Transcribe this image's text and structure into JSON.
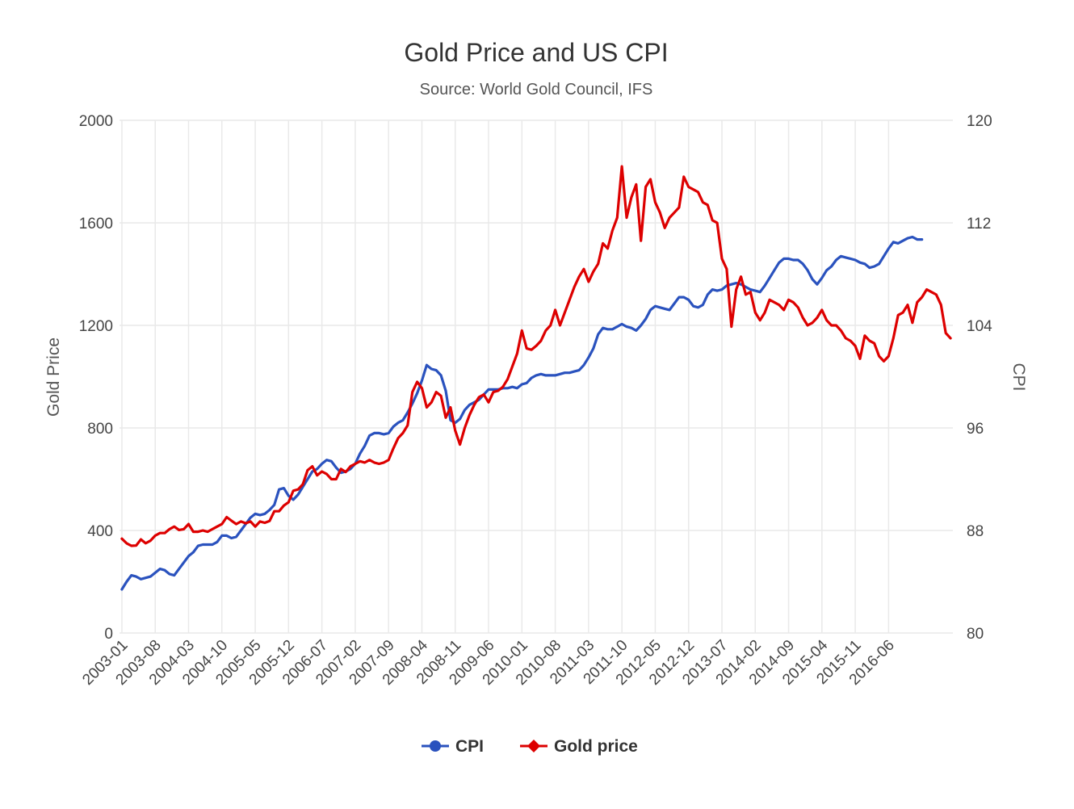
{
  "chart_data": {
    "type": "line",
    "title": "Gold Price and US CPI",
    "subtitle": "Source: World Gold Council, IFS",
    "y_left": {
      "label": "Gold Price",
      "range": [
        0,
        2000
      ],
      "ticks": [
        "0",
        "400",
        "800",
        "1200",
        "1600",
        "2000"
      ]
    },
    "y_right": {
      "label": "CPI",
      "range": [
        80,
        120
      ],
      "ticks": [
        "80",
        "88",
        "96",
        "104",
        "112",
        "120"
      ]
    },
    "x_start": "2003-01",
    "x_tick_labels": [
      "2003-01",
      "2003-08",
      "2004-03",
      "2004-10",
      "2005-05",
      "2005-12",
      "2006-07",
      "2007-02",
      "2007-09",
      "2008-04",
      "2008-11",
      "2009-06",
      "2010-01",
      "2010-08",
      "2011-03",
      "2011-10",
      "2012-05",
      "2012-12",
      "2013-07",
      "2014-02",
      "2014-09",
      "2015-04",
      "2015-11",
      "2016-06"
    ],
    "grid": true,
    "legend": "bottom-center",
    "series": [
      {
        "name": "CPI",
        "axis": "right",
        "color": "#2a52be",
        "values": [
          83.4,
          84.0,
          84.5,
          84.4,
          84.2,
          84.3,
          84.4,
          84.7,
          85.0,
          84.9,
          84.6,
          84.5,
          85.0,
          85.5,
          86.0,
          86.3,
          86.8,
          86.9,
          86.9,
          86.9,
          87.1,
          87.6,
          87.6,
          87.4,
          87.5,
          88.0,
          88.5,
          89.0,
          89.3,
          89.2,
          89.3,
          89.6,
          90.0,
          91.2,
          91.3,
          90.7,
          90.4,
          90.8,
          91.4,
          92.0,
          92.6,
          92.8,
          93.2,
          93.5,
          93.4,
          92.9,
          92.5,
          92.6,
          92.8,
          93.2,
          94.0,
          94.6,
          95.4,
          95.6,
          95.6,
          95.5,
          95.6,
          96.1,
          96.4,
          96.6,
          97.2,
          97.9,
          98.7,
          99.7,
          100.9,
          100.6,
          100.5,
          100.1,
          98.9,
          96.6,
          96.4,
          96.7,
          97.4,
          97.8,
          98.0,
          98.2,
          98.6,
          99.0,
          99.0,
          99.0,
          99.1,
          99.1,
          99.2,
          99.1,
          99.4,
          99.5,
          99.9,
          100.1,
          100.2,
          100.1,
          100.1,
          100.1,
          100.2,
          100.3,
          100.3,
          100.4,
          100.5,
          100.9,
          101.5,
          102.2,
          103.3,
          103.8,
          103.7,
          103.7,
          103.9,
          104.1,
          103.9,
          103.8,
          103.6,
          104.0,
          104.5,
          105.2,
          105.5,
          105.4,
          105.3,
          105.2,
          105.7,
          106.2,
          106.2,
          106.0,
          105.5,
          105.4,
          105.6,
          106.4,
          106.8,
          106.7,
          106.8,
          107.1,
          107.2,
          107.3,
          107.2,
          107.0,
          106.8,
          106.7,
          106.6,
          107.1,
          107.7,
          108.3,
          108.9,
          109.2,
          109.2,
          109.1,
          109.1,
          108.8,
          108.3,
          107.6,
          107.2,
          107.7,
          108.3,
          108.6,
          109.1,
          109.4,
          109.3,
          109.2,
          109.1,
          108.9,
          108.8,
          108.5,
          108.6,
          108.8,
          109.4,
          110.0,
          110.5,
          110.4,
          110.6,
          110.8,
          110.9,
          110.7,
          110.7
        ]
      },
      {
        "name": "Gold price",
        "axis": "left",
        "color": "#dd0000",
        "values": [
          368,
          350,
          340,
          341,
          365,
          350,
          360,
          380,
          390,
          390,
          405,
          415,
          402,
          405,
          425,
          395,
          395,
          400,
          395,
          405,
          415,
          425,
          452,
          438,
          425,
          435,
          428,
          435,
          415,
          435,
          430,
          437,
          475,
          475,
          497,
          510,
          555,
          560,
          580,
          635,
          650,
          615,
          630,
          620,
          600,
          600,
          640,
          628,
          650,
          660,
          670,
          665,
          675,
          665,
          660,
          665,
          675,
          720,
          760,
          780,
          810,
          940,
          980,
          955,
          880,
          900,
          940,
          925,
          840,
          880,
          790,
          735,
          800,
          850,
          890,
          920,
          930,
          900,
          940,
          945,
          960,
          990,
          1040,
          1090,
          1180,
          1110,
          1105,
          1120,
          1140,
          1180,
          1200,
          1260,
          1200,
          1250,
          1300,
          1350,
          1390,
          1420,
          1370,
          1410,
          1440,
          1520,
          1500,
          1570,
          1620,
          1820,
          1620,
          1700,
          1750,
          1530,
          1740,
          1770,
          1680,
          1640,
          1580,
          1620,
          1640,
          1660,
          1780,
          1740,
          1730,
          1720,
          1680,
          1670,
          1610,
          1600,
          1460,
          1420,
          1195,
          1340,
          1390,
          1320,
          1330,
          1250,
          1220,
          1250,
          1300,
          1290,
          1280,
          1260,
          1300,
          1290,
          1270,
          1230,
          1200,
          1210,
          1230,
          1260,
          1220,
          1200,
          1200,
          1180,
          1150,
          1140,
          1120,
          1070,
          1160,
          1140,
          1130,
          1080,
          1060,
          1080,
          1150,
          1240,
          1250,
          1280,
          1210,
          1290,
          1310,
          1340,
          1330,
          1320,
          1280,
          1170,
          1150
        ]
      }
    ]
  }
}
